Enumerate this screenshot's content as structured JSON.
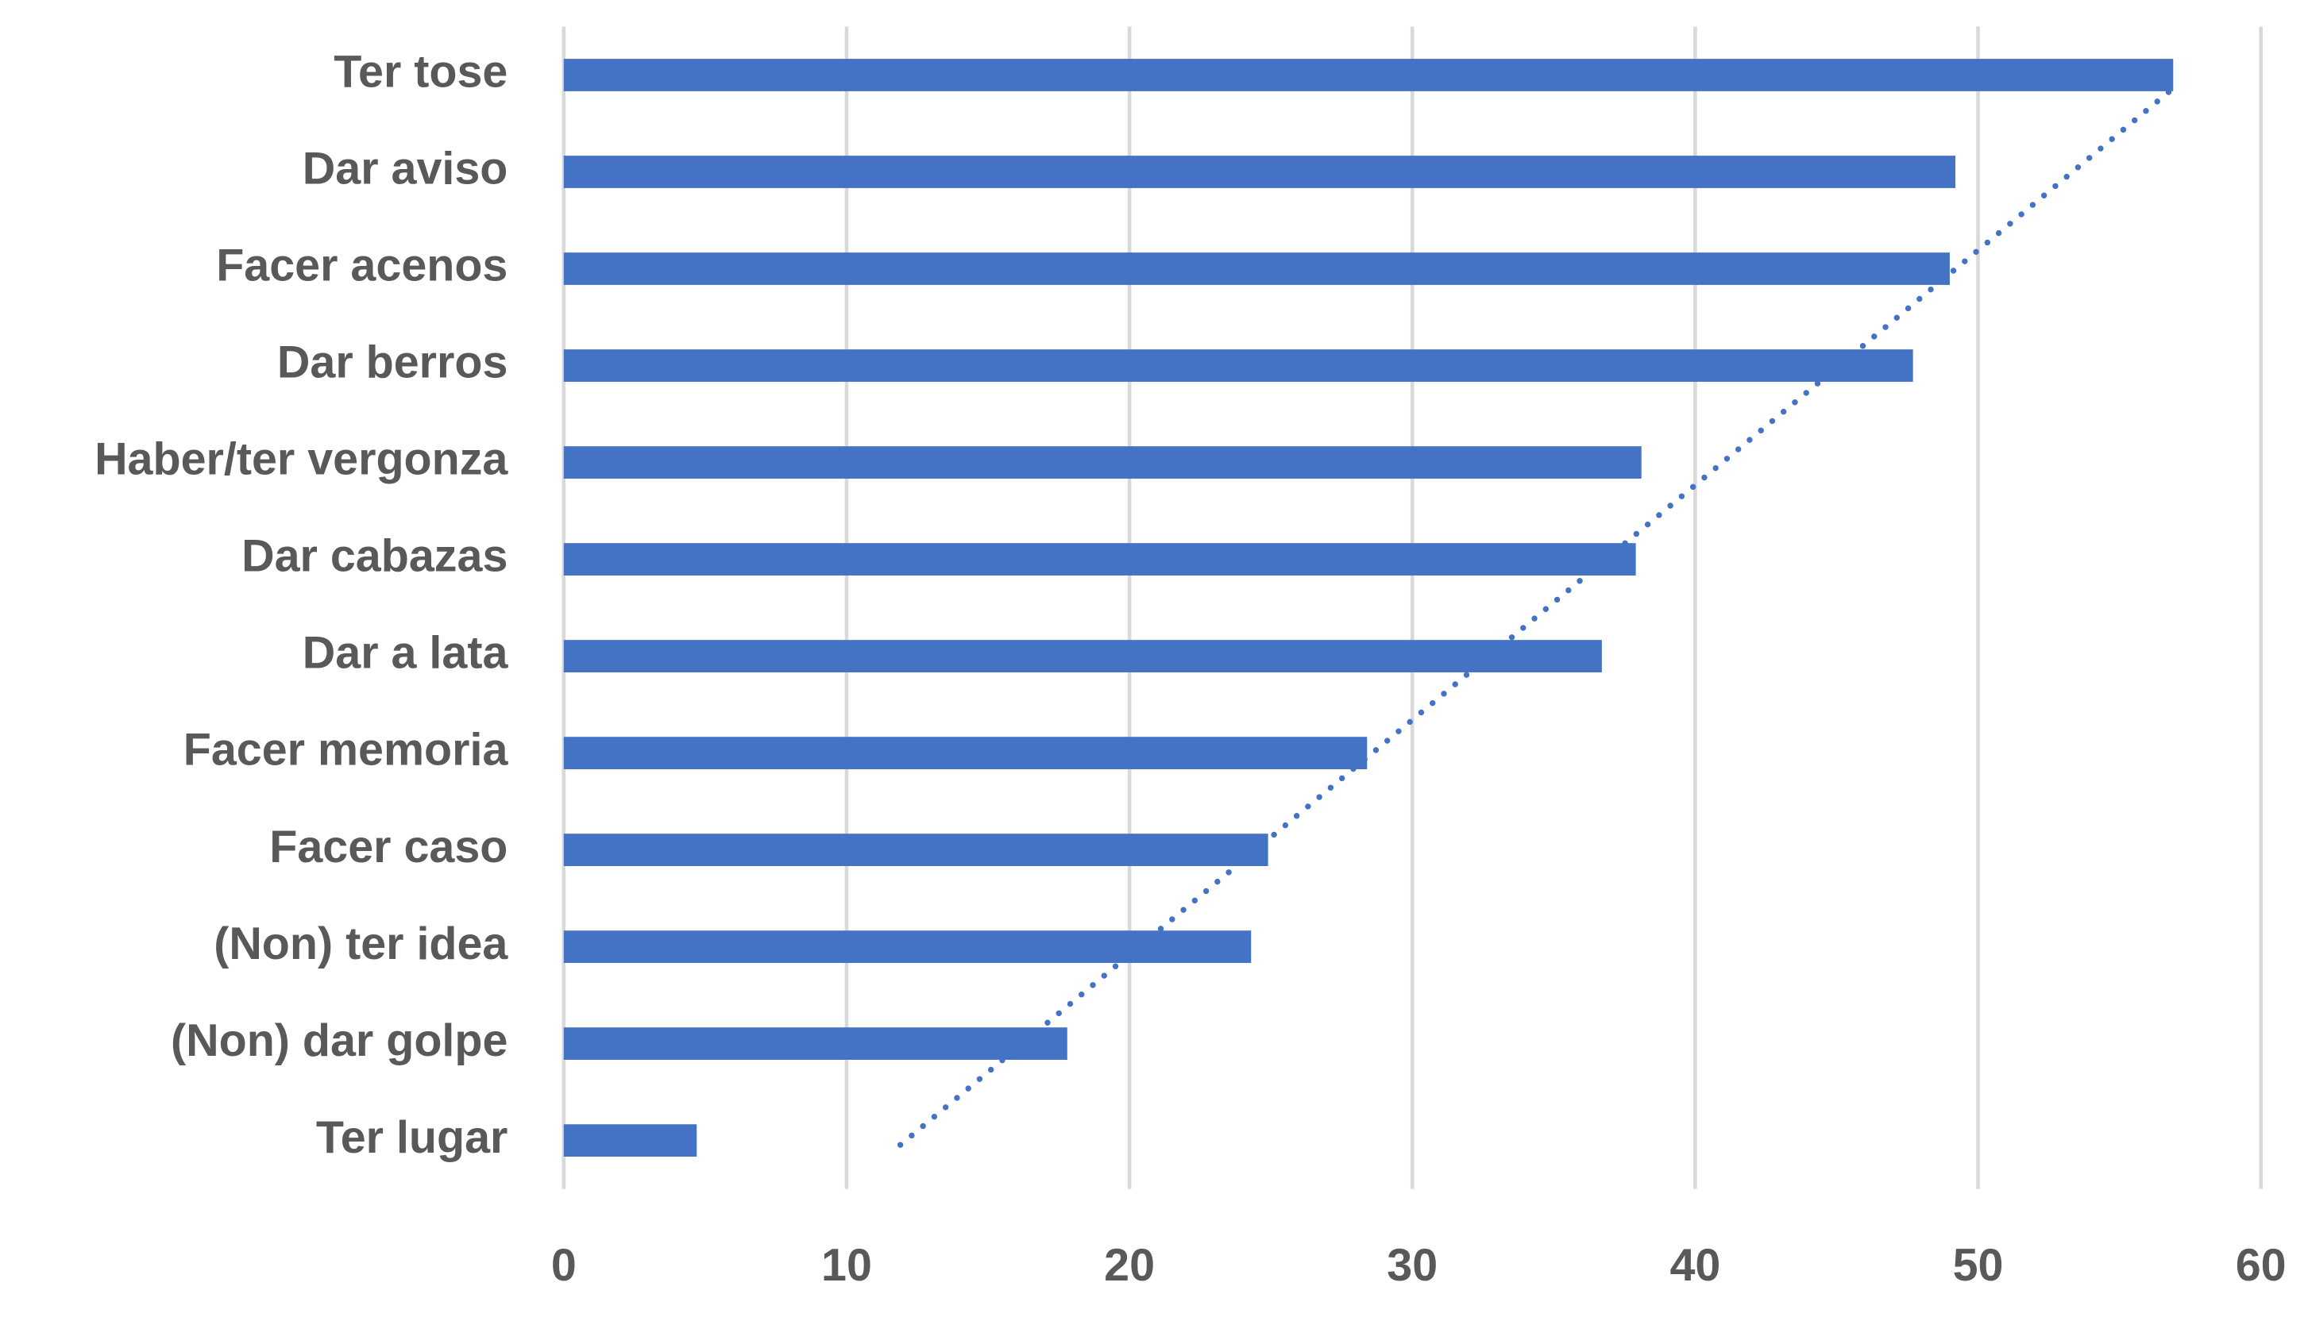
{
  "chart_data": {
    "type": "bar",
    "orientation": "horizontal",
    "categories": [
      "Ter tose",
      "Dar aviso",
      "Facer acenos",
      "Dar berros",
      "Haber/ter vergonza",
      "Dar cabazas",
      "Dar a lata",
      "Facer memoria",
      "Facer caso",
      "(Non) ter idea",
      "(Non) dar golpe",
      "Ter lugar"
    ],
    "values": [
      56.9,
      49.2,
      49.0,
      47.7,
      38.1,
      37.9,
      36.7,
      28.4,
      24.9,
      24.3,
      17.8,
      4.7
    ],
    "color": "#4472c4",
    "xlim": [
      0,
      60
    ],
    "xticks": [
      0,
      10,
      20,
      30,
      40,
      50,
      60
    ],
    "grid": true,
    "trendline": {
      "color": "#4472c4",
      "style": "dotted",
      "start": 11.9,
      "end": 56.9
    }
  }
}
